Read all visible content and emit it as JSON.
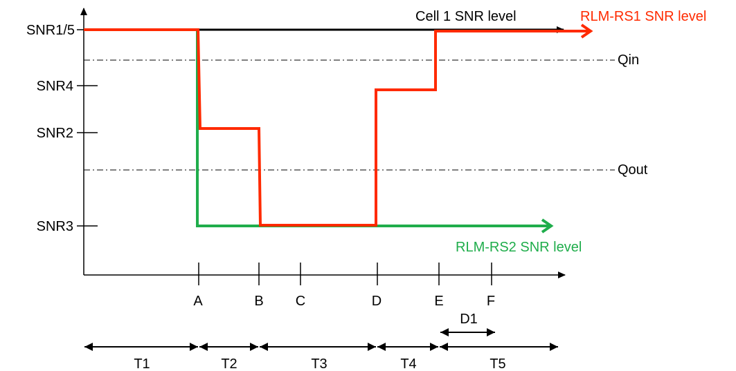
{
  "colors": {
    "axis": "#000000",
    "cell1": "#000000",
    "rs1": "#ff2a00",
    "rs2": "#1fad4b",
    "threshold": "#000000"
  },
  "y_levels": {
    "snr15": "SNR1/5",
    "snr4": "SNR4",
    "snr2": "SNR2",
    "snr3": "SNR3"
  },
  "thresholds": {
    "qin": "Qin",
    "qout": "Qout"
  },
  "series": {
    "cell1": "Cell 1 SNR level",
    "rs1": "RLM-RS1 SNR level",
    "rs2": "RLM-RS2 SNR level"
  },
  "time_points": [
    "A",
    "B",
    "C",
    "D",
    "E",
    "F"
  ],
  "duration": "D1",
  "intervals": [
    "T1",
    "T2",
    "T3",
    "T4",
    "T5"
  ]
}
